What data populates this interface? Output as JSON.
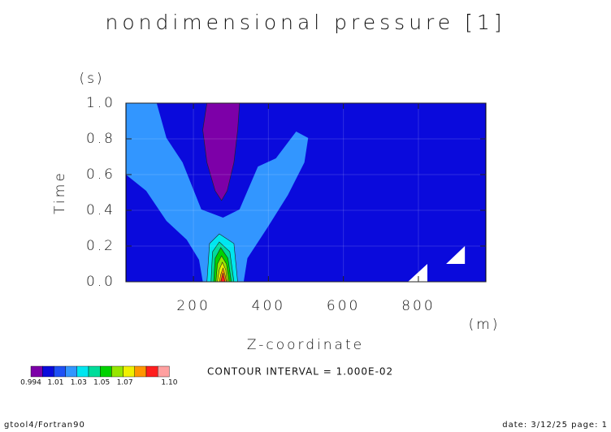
{
  "chart_data": {
    "type": "contour",
    "title": "nondimensional pressure [1]",
    "x_label": "Z-coordinate",
    "x_unit": "(m)",
    "y_label": "Time",
    "y_unit": "(s)",
    "xlim": [
      20,
      980
    ],
    "xticks": [
      200,
      400,
      600,
      800
    ],
    "ylim": [
      0,
      1
    ],
    "yticks": [
      {
        "value": 0,
        "label": "0.0"
      },
      0.2,
      0.4,
      0.6,
      0.8,
      {
        "value": 1,
        "label": "1.0"
      }
    ],
    "background_color": "#0a0adc",
    "regions": [
      {
        "color": "#3296ff",
        "x": [
          20,
          102,
          128,
          171,
          221,
          279,
          323,
          372,
          420,
          474,
          506,
          496,
          452,
          398,
          344,
          334,
          225,
          215,
          182,
          128,
          74,
          20
        ],
        "y": [
          1,
          1,
          0.805,
          0.668,
          0.405,
          0.359,
          0.405,
          0.645,
          0.691,
          0.841,
          0.805,
          0.668,
          0.486,
          0.305,
          0.132,
          0,
          0,
          0.123,
          0.236,
          0.341,
          0.509,
          0.6
        ]
      },
      {
        "color": "#7d00a8",
        "x": [
          236,
          323,
          318,
          308,
          290,
          275,
          258,
          236,
          225
        ],
        "y": [
          1,
          1,
          0.85,
          0.668,
          0.509,
          0.455,
          0.509,
          0.668,
          0.85
        ]
      },
      {
        "color": "#00e6f0",
        "x": [
          236,
          243,
          269,
          308,
          318
        ],
        "y": [
          0,
          0.214,
          0.268,
          0.214,
          0
        ]
      },
      {
        "color": "#00dc9a",
        "x": [
          247,
          251,
          269,
          297,
          308
        ],
        "y": [
          0,
          0.168,
          0.223,
          0.168,
          0
        ]
      },
      {
        "color": "#00d200",
        "x": [
          254,
          258,
          273,
          292,
          301
        ],
        "y": [
          0,
          0.132,
          0.191,
          0.132,
          0
        ]
      },
      {
        "color": "#96e600",
        "x": [
          260,
          264,
          275,
          288,
          295
        ],
        "y": [
          0,
          0.1,
          0.145,
          0.1,
          0
        ]
      },
      {
        "color": "#f0f000",
        "x": [
          264,
          269,
          277,
          286,
          290
        ],
        "y": [
          0,
          0.068,
          0.109,
          0.068,
          0
        ]
      },
      {
        "color": "#ff9600",
        "x": [
          269,
          273,
          279,
          284,
          288
        ],
        "y": [
          0,
          0.041,
          0.077,
          0.041,
          0
        ]
      },
      {
        "color": "#ff1e1e",
        "x": [
          273,
          279,
          284
        ],
        "y": [
          0,
          0.05,
          0
        ]
      },
      {
        "color": "#ffffff",
        "x": [
          772,
          824,
          824
        ],
        "y": [
          0,
          0.1,
          0
        ]
      },
      {
        "color": "#ffffff",
        "x": [
          874,
          924,
          924
        ],
        "y": [
          0.1,
          0.2,
          0.1
        ]
      }
    ],
    "colorbar": {
      "colors": [
        "#7d00a8",
        "#0a0adc",
        "#1e50f5",
        "#3296ff",
        "#00e6f0",
        "#00dc9a",
        "#00d200",
        "#96e600",
        "#f0f000",
        "#ff9600",
        "#ff1e1e",
        "#ffa0a0"
      ],
      "labels": [
        "0.994",
        "1.01",
        "1.03",
        "1.05",
        "1.07",
        "1.10"
      ]
    },
    "contour_interval": "CONTOUR INTERVAL = 1.000E-02",
    "footer_left": "gtool4/Fortran90",
    "footer_right": "date: 3/12/25 page: 1"
  }
}
